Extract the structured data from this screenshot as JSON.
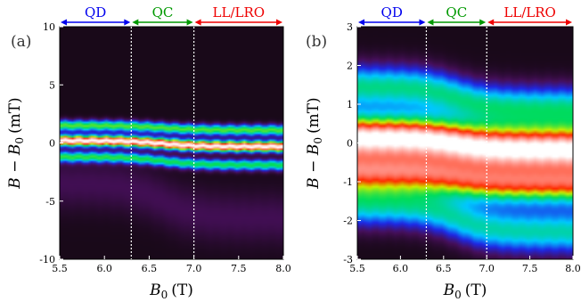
{
  "chart_data": [
    {
      "type": "heatmap",
      "panel_label": "(a)",
      "xlabel_main": "B",
      "xlabel_sub": "0",
      "xlabel_unit": "(T)",
      "ylabel_text": "B − B",
      "ylabel_sub": "0",
      "ylabel_unit": "(mT)",
      "xlim": [
        5.5,
        8.0
      ],
      "ylim": [
        -10,
        10
      ],
      "xticks": [
        "5.5",
        "6.0",
        "6.5",
        "7.0",
        "7.5",
        "8.0"
      ],
      "yticks": [
        "-10",
        "-5",
        "0",
        "5",
        "10"
      ],
      "boundaries": [
        6.3,
        7.0
      ],
      "regions": [
        {
          "label": "QD",
          "x0": 5.5,
          "x1": 6.3,
          "color": "#0000ee"
        },
        {
          "label": "QC",
          "x0": 6.3,
          "x1": 7.0,
          "color": "#009900"
        },
        {
          "label": "LL/LRO",
          "x0": 7.0,
          "x1": 8.0,
          "color": "#ee0000"
        }
      ],
      "peaks": [
        {
          "center_start": 0.2,
          "center_end": -0.3,
          "width": 0.45,
          "amp": 1.0
        },
        {
          "center_start": 1.5,
          "center_end": 1.1,
          "width": 0.45,
          "amp": 0.55
        },
        {
          "center_start": -1.2,
          "center_end": -1.9,
          "width": 0.45,
          "amp": 0.5
        },
        {
          "center_start": -3.5,
          "center_end": -6.5,
          "width": 2.2,
          "amp": 0.08
        }
      ]
    },
    {
      "type": "heatmap",
      "panel_label": "(b)",
      "xlabel_main": "B",
      "xlabel_sub": "0",
      "xlabel_unit": "(T)",
      "ylabel_text": "B − B",
      "ylabel_sub": "0",
      "ylabel_unit": "(mT)",
      "xlim": [
        5.5,
        8.0
      ],
      "ylim": [
        -3,
        3
      ],
      "xticks": [
        "5.5",
        "6.0",
        "6.5",
        "7.0",
        "7.5",
        "8.0"
      ],
      "yticks": [
        "-3",
        "-2",
        "-1",
        "0",
        "1",
        "2",
        "3"
      ],
      "boundaries": [
        6.3,
        7.0
      ],
      "regions": [
        {
          "label": "QD",
          "x0": 5.5,
          "x1": 6.3,
          "color": "#0000ee"
        },
        {
          "label": "QC",
          "x0": 6.3,
          "x1": 7.0,
          "color": "#009900"
        },
        {
          "label": "LL/LRO",
          "x0": 7.0,
          "x1": 8.0,
          "color": "#ee0000"
        }
      ],
      "peaks": [
        {
          "center_start": 0.15,
          "center_end": -0.15,
          "width": 0.55,
          "amp": 1.0
        },
        {
          "center_start": -0.75,
          "center_end": -1.05,
          "width": 0.5,
          "amp": 0.75
        },
        {
          "center_start": 1.45,
          "center_end": 0.9,
          "width": 0.55,
          "amp": 0.45
        },
        {
          "center_start": -1.6,
          "center_end": -2.3,
          "width": 0.55,
          "amp": 0.42
        }
      ]
    }
  ]
}
